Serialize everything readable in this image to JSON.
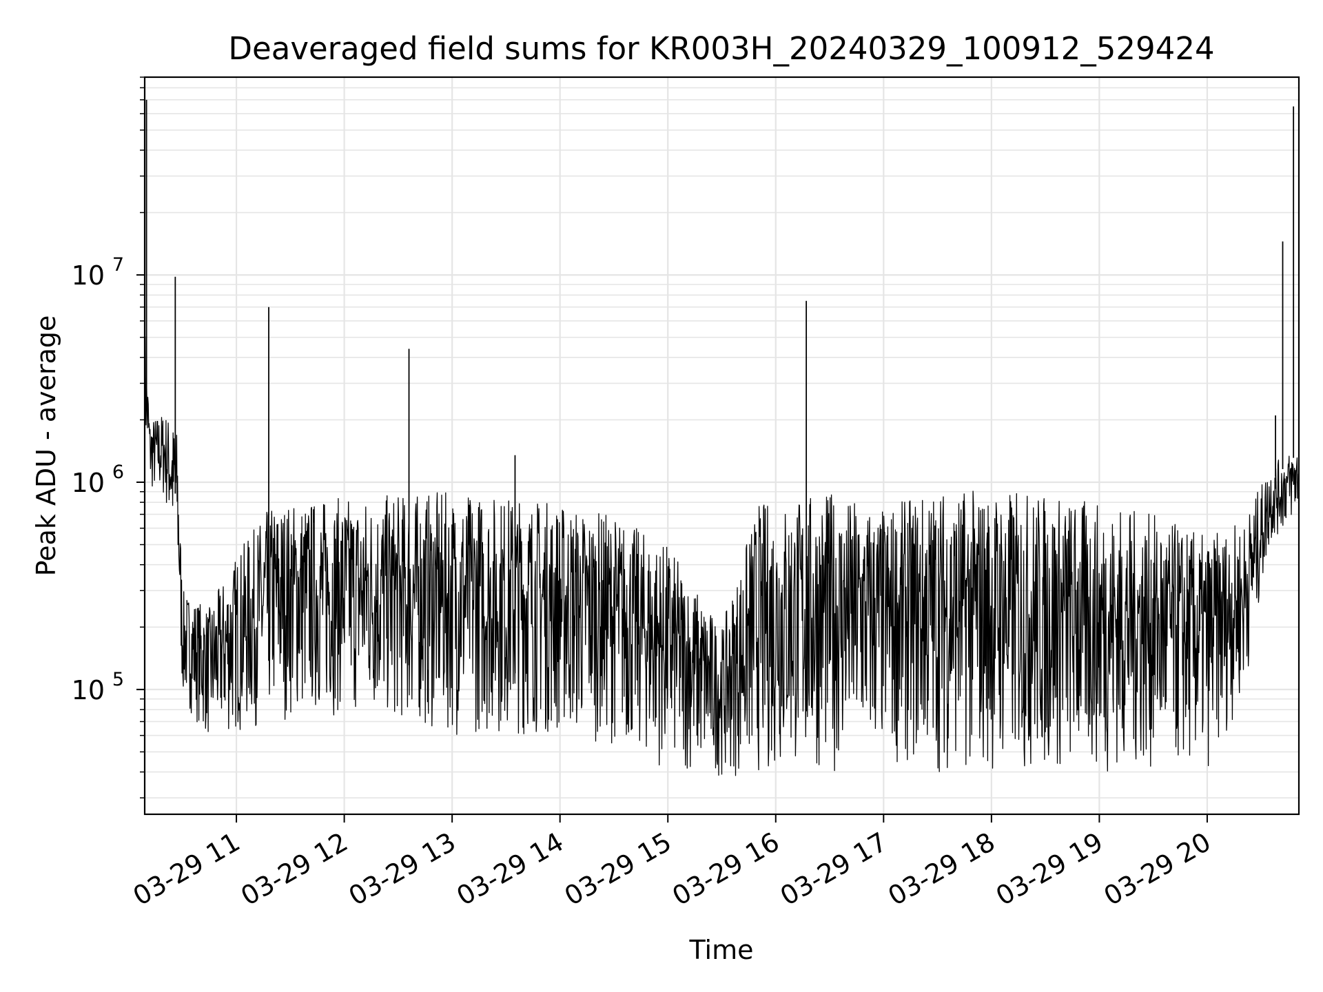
{
  "chart_data": {
    "type": "line",
    "title": "Deaveraged field sums for KR003H_20240329_100912_529424",
    "xlabel": "Time",
    "ylabel": "Peak ADU - average",
    "yscale": "log",
    "ylim": [
      25000,
      90000000
    ],
    "xlim": [
      "2024-03-29 10:09",
      "2024-03-29 20:51"
    ],
    "grid": true,
    "line_color": "#000000",
    "grid_color": "#e5e5e5",
    "x_ticks": [
      {
        "value": "2024-03-29 11:00",
        "label": "03-29 11"
      },
      {
        "value": "2024-03-29 12:00",
        "label": "03-29 12"
      },
      {
        "value": "2024-03-29 13:00",
        "label": "03-29 13"
      },
      {
        "value": "2024-03-29 14:00",
        "label": "03-29 14"
      },
      {
        "value": "2024-03-29 15:00",
        "label": "03-29 15"
      },
      {
        "value": "2024-03-29 16:00",
        "label": "03-29 16"
      },
      {
        "value": "2024-03-29 17:00",
        "label": "03-29 17"
      },
      {
        "value": "2024-03-29 18:00",
        "label": "03-29 18"
      },
      {
        "value": "2024-03-29 19:00",
        "label": "03-29 19"
      },
      {
        "value": "2024-03-29 20:00",
        "label": "03-29 20"
      }
    ],
    "y_ticks": [
      {
        "value": 100000,
        "base": "10",
        "exp": "5"
      },
      {
        "value": 1000000,
        "base": "10",
        "exp": "6"
      },
      {
        "value": 10000000,
        "base": "10",
        "exp": "7"
      }
    ],
    "series": [
      {
        "envelope": [
          {
            "x": "2024-03-29 10:09",
            "low": 1500000,
            "high": 6000000
          },
          {
            "x": "2024-03-29 10:12",
            "low": 900000,
            "high": 2000000
          },
          {
            "x": "2024-03-29 10:20",
            "low": 800000,
            "high": 2200000
          },
          {
            "x": "2024-03-29 10:27",
            "low": 400000,
            "high": 1800000
          },
          {
            "x": "2024-03-29 10:30",
            "low": 90000,
            "high": 300000
          },
          {
            "x": "2024-03-29 10:45",
            "low": 55000,
            "high": 250000
          },
          {
            "x": "2024-03-29 11:00",
            "low": 60000,
            "high": 450000
          },
          {
            "x": "2024-03-29 11:20",
            "low": 70000,
            "high": 800000
          },
          {
            "x": "2024-03-29 12:00",
            "low": 75000,
            "high": 850000
          },
          {
            "x": "2024-03-29 13:00",
            "low": 60000,
            "high": 900000
          },
          {
            "x": "2024-03-29 13:45",
            "low": 60000,
            "high": 850000
          },
          {
            "x": "2024-03-29 14:30",
            "low": 55000,
            "high": 700000
          },
          {
            "x": "2024-03-29 15:00",
            "low": 40000,
            "high": 500000
          },
          {
            "x": "2024-03-29 15:30",
            "low": 38000,
            "high": 200000
          },
          {
            "x": "2024-03-29 15:50",
            "low": 38000,
            "high": 800000
          },
          {
            "x": "2024-03-29 16:30",
            "low": 40000,
            "high": 900000
          },
          {
            "x": "2024-03-29 17:00",
            "low": 45000,
            "high": 750000
          },
          {
            "x": "2024-03-29 17:30",
            "low": 40000,
            "high": 950000
          },
          {
            "x": "2024-03-29 18:30",
            "low": 38000,
            "high": 900000
          },
          {
            "x": "2024-03-29 19:30",
            "low": 40000,
            "high": 700000
          },
          {
            "x": "2024-03-29 20:00",
            "low": 40000,
            "high": 550000
          },
          {
            "x": "2024-03-29 20:20",
            "low": 90000,
            "high": 650000
          },
          {
            "x": "2024-03-29 20:35",
            "low": 500000,
            "high": 1200000
          },
          {
            "x": "2024-03-29 20:51",
            "low": 700000,
            "high": 1500000
          }
        ],
        "spikes": [
          {
            "x": "2024-03-29 10:10",
            "y": 70000000
          },
          {
            "x": "2024-03-29 10:26",
            "y": 9800000
          },
          {
            "x": "2024-03-29 11:18",
            "y": 7000000
          },
          {
            "x": "2024-03-29 12:36",
            "y": 4400000
          },
          {
            "x": "2024-03-29 13:35",
            "y": 1350000
          },
          {
            "x": "2024-03-29 16:17",
            "y": 7500000
          },
          {
            "x": "2024-03-29 20:38",
            "y": 2100000
          },
          {
            "x": "2024-03-29 20:42",
            "y": 14500000
          },
          {
            "x": "2024-03-29 20:48",
            "y": 65000000
          }
        ]
      }
    ]
  }
}
